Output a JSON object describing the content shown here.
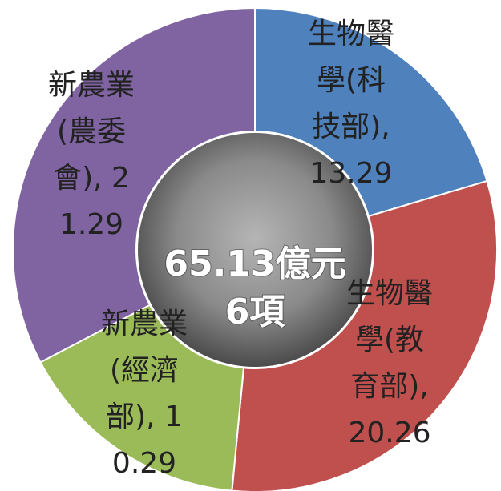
{
  "chart_data": {
    "type": "donut",
    "values": [
      13.29,
      20.26,
      10.29,
      21.29
    ],
    "value_labels": [
      "生物醫學(科技部), 13.29",
      "生物醫學(教育部), 20.26",
      "新農業(經濟部), 10.29",
      "新農業(農委會), 21.29"
    ],
    "colors": [
      "#4f81bd",
      "#c0504d",
      "#9bbb59",
      "#8064a2"
    ],
    "center_text": [
      "65.13億元",
      "6項"
    ]
  }
}
